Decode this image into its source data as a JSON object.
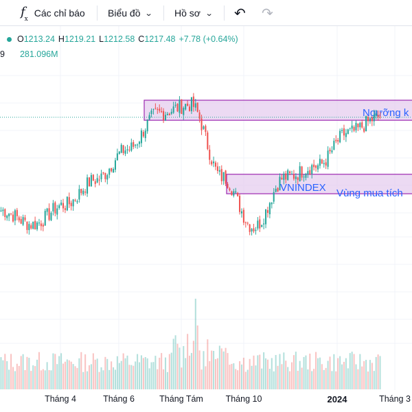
{
  "toolbar": {
    "indicators_label": "Các chỉ báo",
    "chart_label": "Biểu đồ",
    "profile_label": "Hồ sơ",
    "undo_icon": "undo-icon",
    "redo_icon": "redo-icon"
  },
  "legend": {
    "open_key": "O",
    "open": "1213.24",
    "high_key": "H",
    "high": "1219.21",
    "low_key": "L",
    "low": "1212.58",
    "close_key": "C",
    "close": "1217.48",
    "change": "+7.78 (+0.64%)",
    "vol_cut": "9",
    "volume": "281.096M"
  },
  "colors": {
    "up": "#26a69a",
    "down": "#ef5350",
    "zone_fill": "#e6cdef",
    "zone_stroke": "#9c27b0",
    "annotation_text": "#2962ff"
  },
  "chart_data": {
    "type": "candlestick",
    "title": "VNINDEX",
    "x_ticks": [
      "Tháng 4",
      "Tháng 6",
      "Tháng Tám",
      "Tháng 10",
      "2024",
      "Tháng 3"
    ],
    "y_range_visible": [
      910,
      1280
    ],
    "series_close_anchors": [
      [
        "Tháng 3",
        1050
      ],
      [
        "Tháng 4",
        1025
      ],
      [
        "Tháng 5",
        1060
      ],
      [
        "Tháng 6",
        1105
      ],
      [
        "Tháng 7",
        1160
      ],
      [
        "Tháng Tám",
        1225
      ],
      [
        "Tháng 9",
        1240
      ],
      [
        "Tháng 10",
        1110
      ],
      [
        "Tháng 11",
        1020
      ],
      [
        "Tháng 12",
        1110
      ],
      [
        "2024",
        1130
      ],
      [
        "Tháng 2",
        1190
      ],
      [
        "Tháng 3",
        1217.48
      ]
    ],
    "zones": [
      {
        "label": "Ngưỡng k",
        "y_range": [
          1212,
          1248
        ]
      },
      {
        "label": "Vùng mua tích",
        "y_range": [
          1080,
          1115
        ]
      }
    ],
    "last_close": 1217.48,
    "volume_last": "281.096M"
  }
}
